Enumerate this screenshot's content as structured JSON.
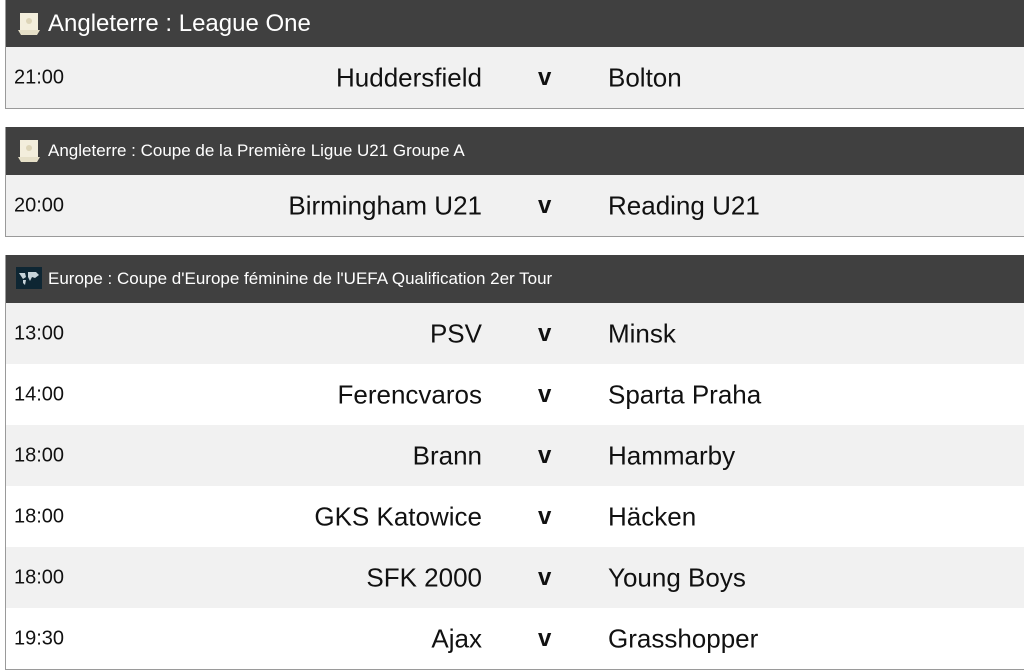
{
  "competitions": [
    {
      "title": "Angleterre : League One",
      "icon": "trophy-icon",
      "matches": [
        {
          "time": "21:00",
          "home": "Huddersfield",
          "sep": "v",
          "away": "Bolton"
        }
      ]
    },
    {
      "title": "Angleterre : Coupe de la Première Ligue U21 Groupe A",
      "icon": "trophy-icon",
      "matches": [
        {
          "time": "20:00",
          "home": "Birmingham U21",
          "sep": "v",
          "away": "Reading U21"
        }
      ]
    },
    {
      "title": "Europe : Coupe d'Europe féminine de l'UEFA Qualification 2er Tour",
      "icon": "world-map-icon",
      "matches": [
        {
          "time": "13:00",
          "home": "PSV",
          "sep": "v",
          "away": "Minsk"
        },
        {
          "time": "14:00",
          "home": "Ferencvaros",
          "sep": "v",
          "away": "Sparta Praha"
        },
        {
          "time": "18:00",
          "home": "Brann",
          "sep": "v",
          "away": "Hammarby"
        },
        {
          "time": "18:00",
          "home": "GKS Katowice",
          "sep": "v",
          "away": "Häcken"
        },
        {
          "time": "18:00",
          "home": "SFK 2000",
          "sep": "v",
          "away": "Young Boys"
        },
        {
          "time": "19:30",
          "home": "Ajax",
          "sep": "v",
          "away": "Grasshopper"
        }
      ]
    }
  ]
}
